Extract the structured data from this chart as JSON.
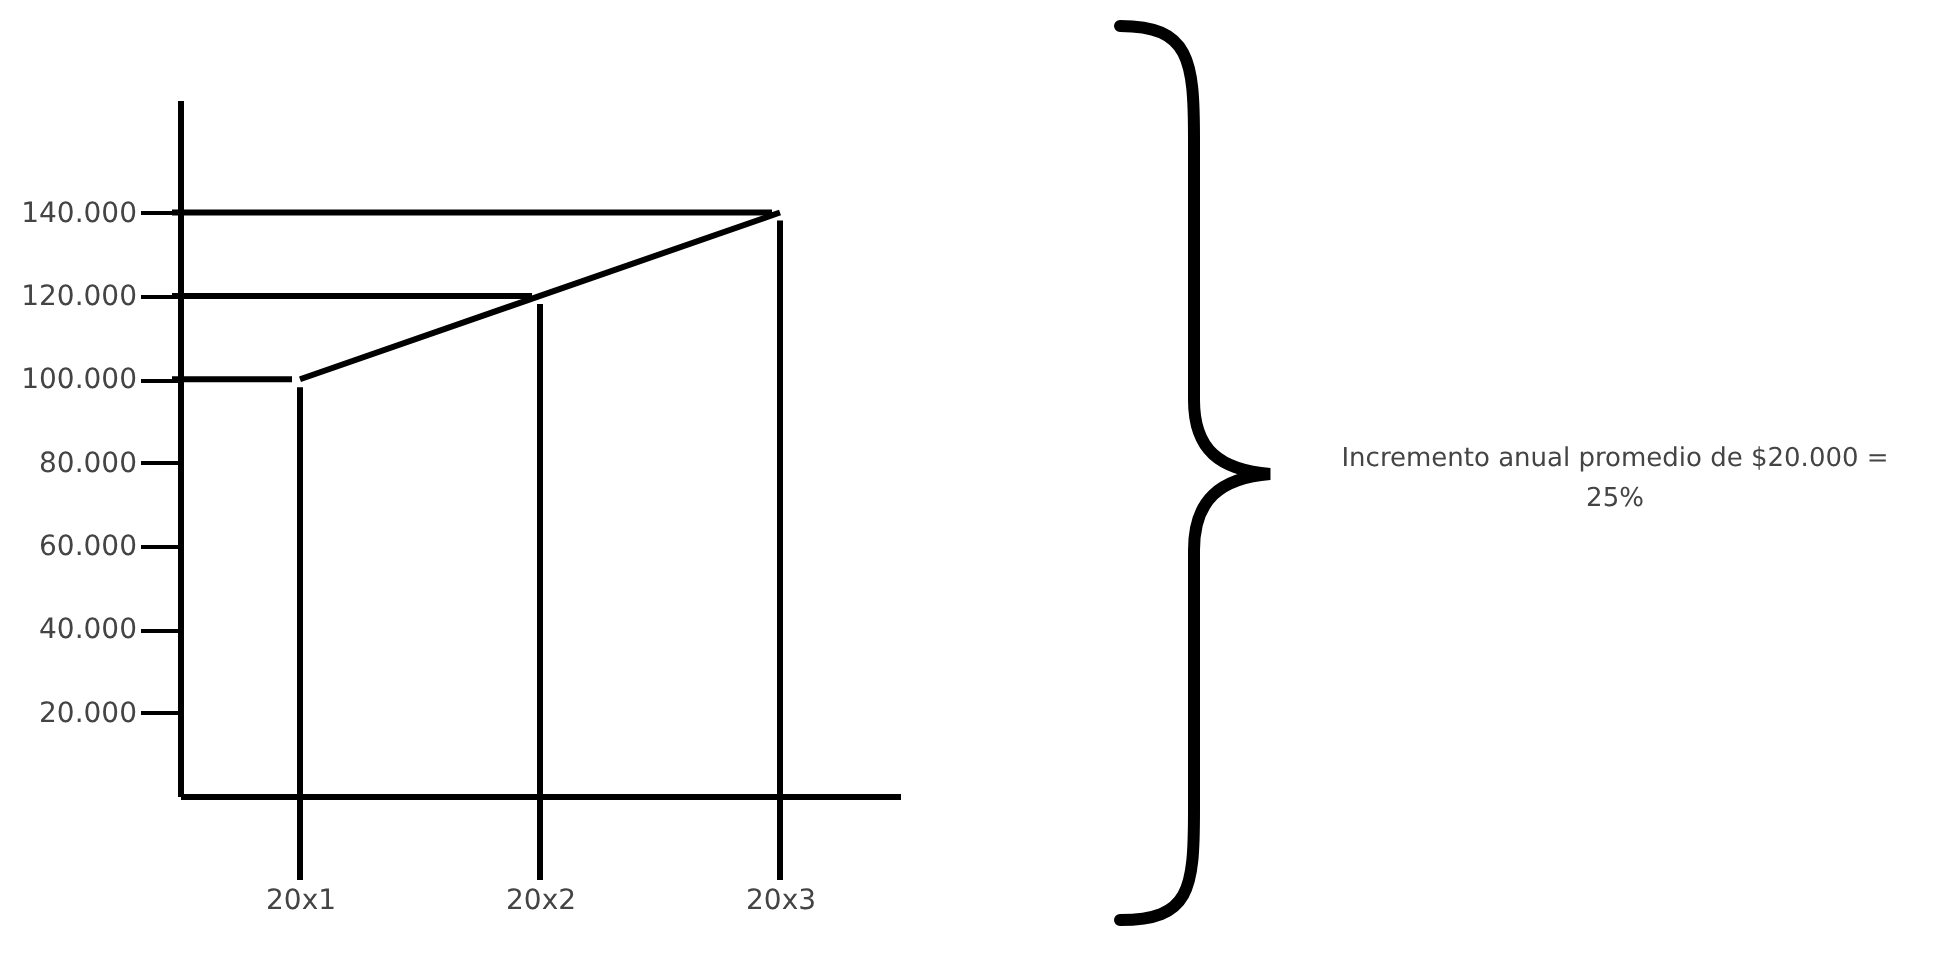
{
  "chart_data": {
    "type": "line",
    "categories": [
      "20x1",
      "20x2",
      "20x3"
    ],
    "series": [
      {
        "color": "#000000",
        "values": [
          100000,
          120000,
          140000
        ]
      }
    ],
    "ylim": [
      0,
      167000
    ],
    "yticks": [
      {
        "value": 20000,
        "label": "20.000"
      },
      {
        "value": 40000,
        "label": "40.000"
      },
      {
        "value": 60000,
        "label": "60.000"
      },
      {
        "value": 80000,
        "label": "80.000"
      },
      {
        "value": 100000,
        "label": "100.000"
      },
      {
        "value": 120000,
        "label": "120.000"
      },
      {
        "value": 140000,
        "label": "140.000"
      }
    ],
    "marker": "none",
    "line_style": "solid",
    "ref_lines": [
      {
        "axis": "y",
        "value": 100000
      },
      {
        "axis": "y",
        "value": 120000
      },
      {
        "axis": "y",
        "value": 140000
      },
      {
        "axis": "x",
        "value": "20x1"
      },
      {
        "axis": "x",
        "value": "20x2"
      },
      {
        "axis": "x",
        "value": "20x3"
      }
    ],
    "annotations": [
      "Incremento anual promedio de $20.000 = 25%"
    ]
  }
}
